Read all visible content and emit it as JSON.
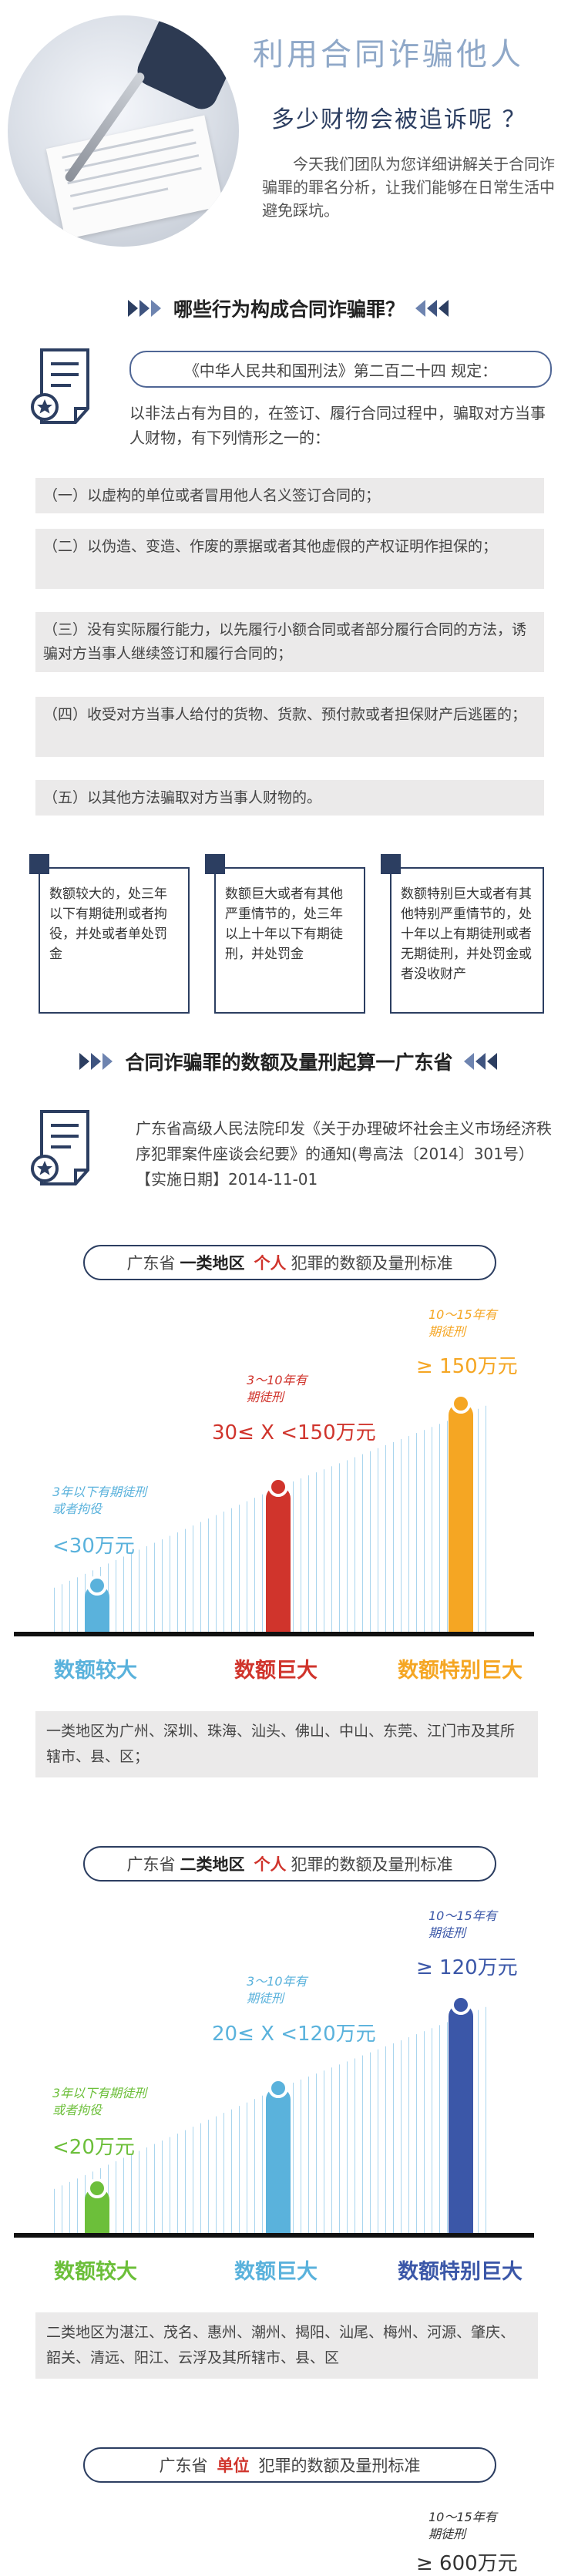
{
  "header": {
    "title": "利用合同诈骗他人",
    "subtitle": "多少财物会被追诉呢 ？",
    "description": "今天我们团队为您详细讲解关于合同诈骗罪的罪名分析，让我们能够在日常生活中避免踩坑。"
  },
  "section1": {
    "title": "哪些行为构成合同诈骗罪？",
    "law_ref": "《中华人民共和国刑法》第二百二十四 规定：",
    "law_text": "以非法占有为目的，在签订、履行合同过程中，骗取对方当事人财物，有下列情形之一的：",
    "items": [
      "（一）以虚构的单位或者冒用他人名义签订合同的；",
      "（二）以伪造、变造、作废的票据或者其他虚假的产权证明作担保的；",
      "（三）没有实际履行能力，以先履行小额合同或者部分履行合同的方法，诱骗对方当事人继续签订和履行合同的；",
      "（四）收受对方当事人给付的货物、货款、预付款或者担保财产后逃匿的；",
      "（五）以其他方法骗取对方当事人财物的。"
    ],
    "penalties": [
      "数额较大的，处三年以下有期徒刑或者拘役，并处或者单处罚金",
      "数额巨大或者有其他严重情节的，处三年以上十年以下有期徒刑，并处罚金",
      "数额特别巨大或者有其他特别严重情节的，处十年以上有期徒刑或者无期徒刑，并处罚金或者没收财产"
    ]
  },
  "section2": {
    "title": "合同诈骗罪的数额及量刑起算一广东省",
    "source_text": "广东省高级人民法院印发《关于办理破坏社会主义市场经济秩序犯罪案件座谈会纪要》的通知(粤高法〔2014〕301号）【实施日期】2014-11-01"
  },
  "chart1": {
    "pill_prefix": "广东省",
    "pill_region": "一类地区",
    "pill_subject": "个人",
    "pill_suffix": "犯罪的数额及量刑标准",
    "levels": [
      {
        "label": "数额较大",
        "years": "3年以下有期徒刑或者拘役",
        "amount": "<30万元",
        "color": "#5ab2dc"
      },
      {
        "label": "数额巨大",
        "years": "3～10年有期徒刑",
        "amount": "30≤ X <150万元",
        "color": "#d0342c"
      },
      {
        "label": "数额特别巨大",
        "years": "10～15年有期徒刑",
        "amount": "≥ 150万元",
        "color": "#f5a623"
      }
    ],
    "note": "一类地区为广州、深圳、珠海、汕头、佛山、中山、东莞、江门市及其所辖市、县、区；"
  },
  "chart2": {
    "pill_prefix": "广东省",
    "pill_region": "二类地区",
    "pill_subject": "个人",
    "pill_suffix": "犯罪的数额及量刑标准",
    "levels": [
      {
        "label": "数额较大",
        "years": "3年以下有期徒刑或者拘役",
        "amount": "<20万元",
        "color": "#6cbf3a"
      },
      {
        "label": "数额巨大",
        "years": "3～10年有期徒刑",
        "amount": "20≤ X <120万元",
        "color": "#5ab2dc"
      },
      {
        "label": "数额特别巨大",
        "years": "10～15年有期徒刑",
        "amount": "≥ 120万元",
        "color": "#3b57a8"
      }
    ],
    "note": "二类地区为湛江、茂名、惠州、潮州、揭阳、汕尾、梅州、河源、肇庆、韶关、清远、阳江、云浮及其所辖市、县、区"
  },
  "chart3": {
    "pill_prefix": "广东省",
    "pill_subject": "单位",
    "pill_suffix": "犯罪的数额及量刑标准",
    "years": "10～15年有期徒刑",
    "amount": "≥ 600万元"
  }
}
